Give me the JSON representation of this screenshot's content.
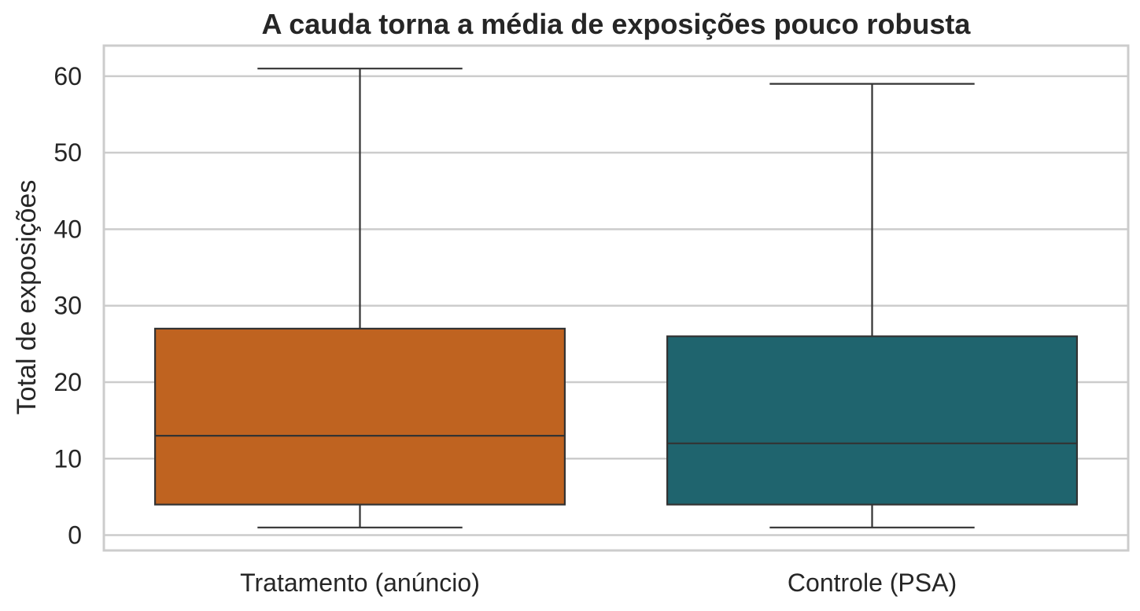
{
  "chart_data": {
    "type": "box",
    "title": "A cauda torna a média de exposições pouco robusta",
    "xlabel": "",
    "ylabel": "Total de exposições",
    "ylim": [
      -2,
      64
    ],
    "yticks": [
      0,
      10,
      20,
      30,
      40,
      50,
      60
    ],
    "grid": true,
    "categories": [
      "Tratamento (anúncio)",
      "Controle (PSA)"
    ],
    "boxes": [
      {
        "category": "Tratamento (anúncio)",
        "whisker_low": 1,
        "q1": 4,
        "median": 13,
        "q3": 27,
        "whisker_high": 61,
        "color": "#bf6320"
      },
      {
        "category": "Controle (PSA)",
        "whisker_low": 1,
        "q1": 4,
        "median": 12,
        "q3": 26,
        "whisker_high": 59,
        "color": "#1f646e"
      }
    ]
  }
}
